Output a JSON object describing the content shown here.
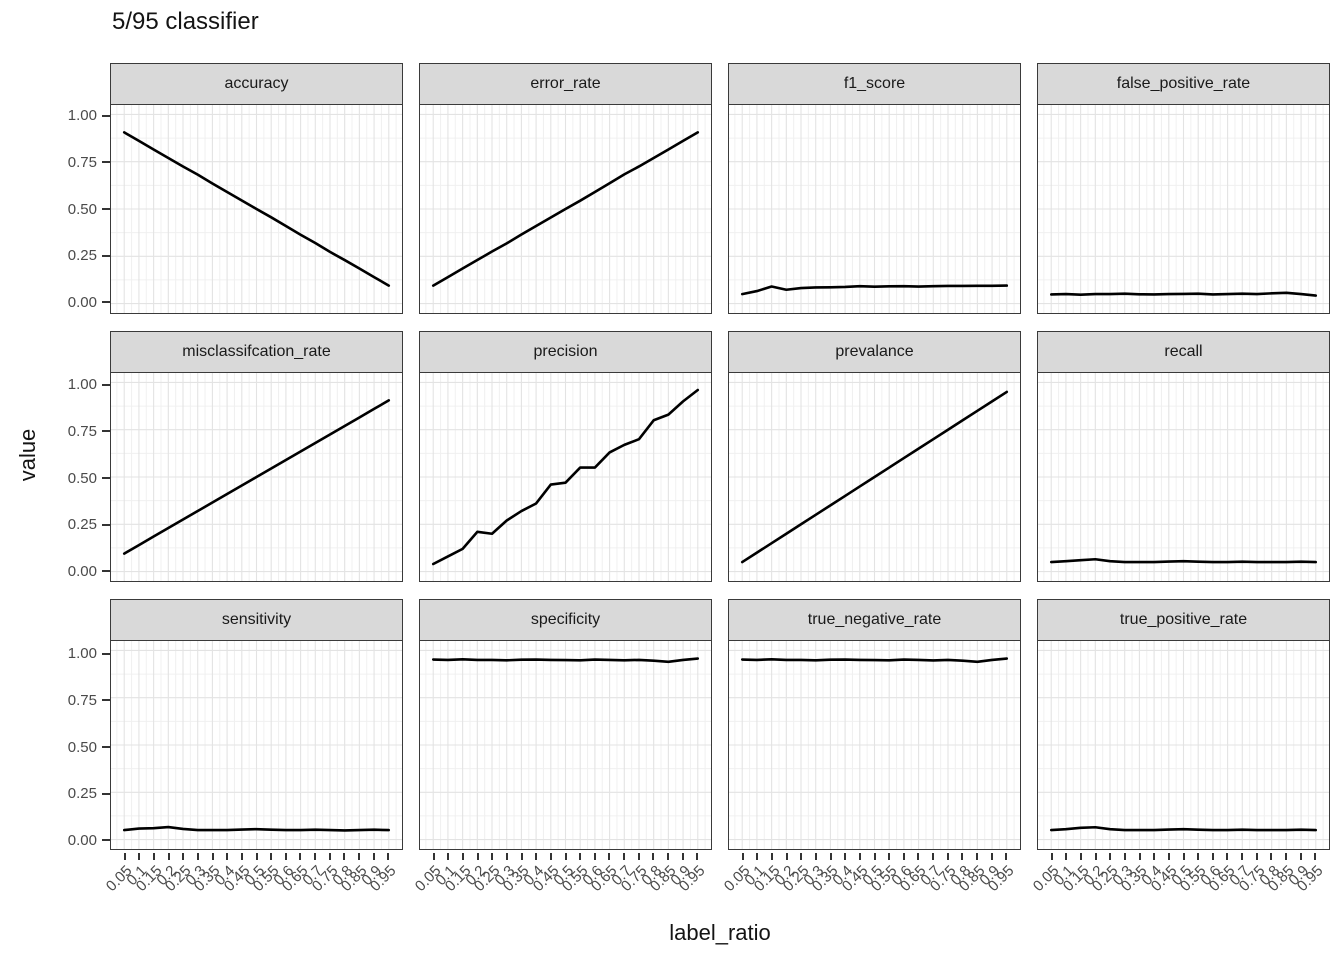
{
  "chart_data": {
    "type": "line",
    "title": "5/95 classifier",
    "xlabel": "label_ratio",
    "ylabel": "value",
    "x": [
      0.05,
      0.1,
      0.15,
      0.2,
      0.25,
      0.3,
      0.35,
      0.4,
      0.45,
      0.5,
      0.55,
      0.6,
      0.65,
      0.7,
      0.75,
      0.8,
      0.85,
      0.9,
      0.95
    ],
    "x_tick_labels": [
      "0.05",
      "0.1",
      "0.15",
      "0.2",
      "0.25",
      "0.3",
      "0.35",
      "0.4",
      "0.45",
      "0.5",
      "0.55",
      "0.6",
      "0.65",
      "0.7",
      "0.75",
      "0.8",
      "0.85",
      "0.9",
      "0.95"
    ],
    "y_ticks": [
      0,
      0.25,
      0.5,
      0.75,
      1
    ],
    "y_tick_labels": [
      "0.00",
      "0.25",
      "0.50",
      "0.75",
      "1.00"
    ],
    "ylim": [
      0,
      1
    ],
    "x_minor_ticks": [
      0.025,
      0.075,
      0.125,
      0.175,
      0.225,
      0.275,
      0.325,
      0.375,
      0.425,
      0.475,
      0.525,
      0.575,
      0.625,
      0.675,
      0.725,
      0.775,
      0.825,
      0.875,
      0.925,
      0.975
    ],
    "y_minor_ticks": [
      0.125,
      0.375,
      0.625,
      0.875
    ],
    "grid": "major-and-minor",
    "legend": "none",
    "facet_layout": {
      "rows": 3,
      "cols": 4
    },
    "colors": {
      "line": "#000000",
      "strip_fill": "#d9d9d9",
      "panel_border": "#3a3a3a",
      "grid_major": "#e3e3e3",
      "grid_minor": "#f0f0f0",
      "axis_text": "#4a4a4a",
      "tick_mark": "#333333"
    },
    "facets": [
      {
        "label": "accuracy",
        "values": [
          0.905,
          0.86,
          0.815,
          0.77,
          0.725,
          0.682,
          0.635,
          0.59,
          0.545,
          0.5,
          0.456,
          0.41,
          0.364,
          0.32,
          0.273,
          0.23,
          0.185,
          0.14,
          0.095
        ]
      },
      {
        "label": "error_rate",
        "values": [
          0.095,
          0.14,
          0.185,
          0.23,
          0.275,
          0.318,
          0.365,
          0.41,
          0.455,
          0.5,
          0.544,
          0.59,
          0.636,
          0.683,
          0.725,
          0.77,
          0.815,
          0.86,
          0.905
        ]
      },
      {
        "label": "f1_score",
        "values": [
          0.05,
          0.066,
          0.09,
          0.073,
          0.082,
          0.085,
          0.086,
          0.088,
          0.092,
          0.089,
          0.091,
          0.092,
          0.09,
          0.092,
          0.093,
          0.093,
          0.094,
          0.094,
          0.095
        ]
      },
      {
        "label": "false_positive_rate",
        "values": [
          0.048,
          0.05,
          0.047,
          0.05,
          0.05,
          0.052,
          0.049,
          0.048,
          0.05,
          0.051,
          0.052,
          0.048,
          0.05,
          0.052,
          0.05,
          0.054,
          0.057,
          0.05,
          0.042
        ]
      },
      {
        "label": "misclassifcation_rate",
        "values": [
          0.095,
          0.14,
          0.185,
          0.23,
          0.275,
          0.32,
          0.365,
          0.41,
          0.455,
          0.5,
          0.545,
          0.59,
          0.635,
          0.68,
          0.725,
          0.77,
          0.815,
          0.86,
          0.905
        ]
      },
      {
        "label": "precision",
        "values": [
          0.04,
          0.08,
          0.12,
          0.21,
          0.2,
          0.27,
          0.32,
          0.36,
          0.46,
          0.47,
          0.55,
          0.55,
          0.63,
          0.67,
          0.7,
          0.8,
          0.83,
          0.9,
          0.96
        ]
      },
      {
        "label": "prevalance",
        "values": [
          0.05,
          0.1,
          0.15,
          0.2,
          0.25,
          0.3,
          0.35,
          0.4,
          0.45,
          0.5,
          0.55,
          0.6,
          0.65,
          0.7,
          0.75,
          0.8,
          0.85,
          0.9,
          0.95
        ]
      },
      {
        "label": "recall",
        "values": [
          0.05,
          0.055,
          0.06,
          0.065,
          0.055,
          0.05,
          0.05,
          0.05,
          0.053,
          0.055,
          0.052,
          0.05,
          0.05,
          0.052,
          0.05,
          0.05,
          0.05,
          0.052,
          0.05
        ]
      },
      {
        "label": "sensitivity",
        "values": [
          0.05,
          0.058,
          0.06,
          0.066,
          0.056,
          0.05,
          0.05,
          0.05,
          0.053,
          0.055,
          0.052,
          0.05,
          0.05,
          0.052,
          0.05,
          0.048,
          0.05,
          0.052,
          0.05
        ]
      },
      {
        "label": "specificity",
        "values": [
          0.952,
          0.95,
          0.953,
          0.95,
          0.95,
          0.948,
          0.951,
          0.952,
          0.95,
          0.949,
          0.948,
          0.952,
          0.95,
          0.948,
          0.95,
          0.946,
          0.94,
          0.95,
          0.957
        ]
      },
      {
        "label": "true_negative_rate",
        "values": [
          0.952,
          0.95,
          0.953,
          0.95,
          0.95,
          0.948,
          0.951,
          0.952,
          0.95,
          0.949,
          0.948,
          0.952,
          0.95,
          0.947,
          0.95,
          0.946,
          0.94,
          0.95,
          0.957
        ]
      },
      {
        "label": "true_positive_rate",
        "values": [
          0.05,
          0.055,
          0.062,
          0.065,
          0.055,
          0.05,
          0.05,
          0.05,
          0.053,
          0.055,
          0.052,
          0.05,
          0.05,
          0.052,
          0.05,
          0.05,
          0.05,
          0.052,
          0.05
        ]
      }
    ]
  }
}
